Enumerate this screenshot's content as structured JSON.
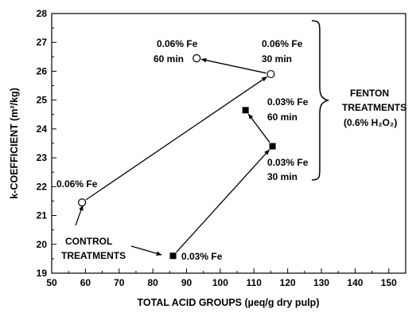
{
  "chart_data": {
    "type": "scatter",
    "title": "",
    "xlabel": "TOTAL ACID GROUPS (µeq/g dry pulp)",
    "ylabel": "k-COEFFICIENT (m²/kg)",
    "xlim": [
      50,
      155
    ],
    "ylim": [
      19,
      28
    ],
    "xticks": [
      "50",
      "60",
      "70",
      "80",
      "90",
      "100",
      "110",
      "120",
      "130",
      "140",
      "150"
    ],
    "yticks": [
      "19",
      "20",
      "21",
      "22",
      "23",
      "24",
      "25",
      "26",
      "27",
      "28"
    ],
    "grid": false,
    "legend": "none",
    "series": [
      {
        "marker": "open-circle",
        "points": [
          {
            "x": 59,
            "y": 21.45,
            "label": "0.06% Fe"
          },
          {
            "x": 115,
            "y": 25.9,
            "label": "0.06% Fe 30 min"
          },
          {
            "x": 93,
            "y": 26.45,
            "label": "0.06% Fe 60 min"
          }
        ]
      },
      {
        "marker": "filled-square",
        "points": [
          {
            "x": 86,
            "y": 19.6,
            "label": "0.03% Fe"
          },
          {
            "x": 115.5,
            "y": 23.4,
            "label": "0.03% Fe 30 min"
          },
          {
            "x": 107.5,
            "y": 24.65,
            "label": "0.03% Fe 60 min"
          }
        ]
      }
    ],
    "arrows": [
      {
        "from": [
          59,
          21.45
        ],
        "to": [
          115,
          25.9
        ]
      },
      {
        "from": [
          115,
          25.9
        ],
        "to": [
          93,
          26.45
        ]
      },
      {
        "from": [
          86,
          19.6
        ],
        "to": [
          115.5,
          23.4
        ]
      },
      {
        "from": [
          115.5,
          23.4
        ],
        "to": [
          107.5,
          24.65
        ]
      }
    ],
    "annotations": {
      "fe06": "0.06% Fe",
      "fe06_60_a": "0.06% Fe",
      "fe06_60_b": "60 min",
      "fe06_30_a": "0.06% Fe",
      "fe06_30_b": "30 min",
      "fe03": "0.03% Fe",
      "fe03_60_a": "0.03% Fe",
      "fe03_60_b": "60 min",
      "fe03_30_a": "0.03% Fe",
      "fe03_30_b": "30 min",
      "control_a": "CONTROL",
      "control_b": "TREATMENTS",
      "fenton_a": "FENTON",
      "fenton_b": "TREATMENTS",
      "fenton_c": "(0.6% H₂O₂)"
    }
  }
}
